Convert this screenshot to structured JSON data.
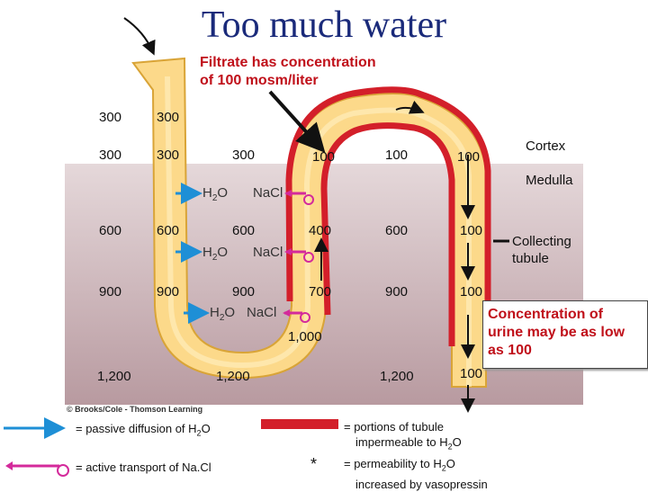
{
  "title": "Too much water",
  "annotations": {
    "filtrate_line1": "Filtrate has concentration",
    "filtrate_line2": "of 100 mosm/liter",
    "cortex": "Cortex",
    "medulla": "Medulla",
    "collecting_line1": "Collecting",
    "collecting_line2": "tubule",
    "urine_line1": "Concentration of",
    "urine_line2": "urine may be as low",
    "urine_line3": "as 100"
  },
  "values": {
    "v300a": "300",
    "v300b": "300",
    "v300c": "300",
    "v300d": "300",
    "v300e": "300",
    "v100a": "100",
    "v100b": "100",
    "v100c": "100",
    "v100d": "100",
    "v100e": "100",
    "v600a": "600",
    "v600b": "600",
    "v600c": "600",
    "v600d": "600",
    "v400": "400",
    "v900a": "900",
    "v900b": "900",
    "v900c": "900",
    "v900d": "900",
    "v700": "700",
    "v1000": "1,000",
    "v1200a": "1,200",
    "v1200b": "1,200",
    "v1200c": "1,200"
  },
  "transport": {
    "h2o": "H",
    "h2o_sub": "2",
    "h2o_end": "O",
    "nacl": "NaCl"
  },
  "credit": "© Brooks/Cole - Thomson Learning",
  "legend": {
    "passive_pre": "= passive diffusion of H",
    "passive_sub": "2",
    "passive_post": "O",
    "active": "= active transport of Na.Cl",
    "impermeable_line1": "= portions of tubule",
    "impermeable_line2_pre": "impermeable to H",
    "impermeable_line2_sub": "2",
    "impermeable_line2_post": "O",
    "star": "*",
    "vaso_line1_pre": "= permeability to H",
    "vaso_line1_sub": "2",
    "vaso_line1_post": "O",
    "vaso_line2": "increased by vasopressin"
  },
  "colors": {
    "tubule_fill": "#fcd98a",
    "tubule_edge": "#d9a437",
    "impermeable_wall": "#d31f2a",
    "medulla_bg": "#c9b3b8",
    "cortex_bg": "#ffffff",
    "passive_arrow": "#1e8fd6",
    "active_arrow": "#d42a9b",
    "title": "#1a2a7a",
    "annotation_red": "#c0101a"
  }
}
